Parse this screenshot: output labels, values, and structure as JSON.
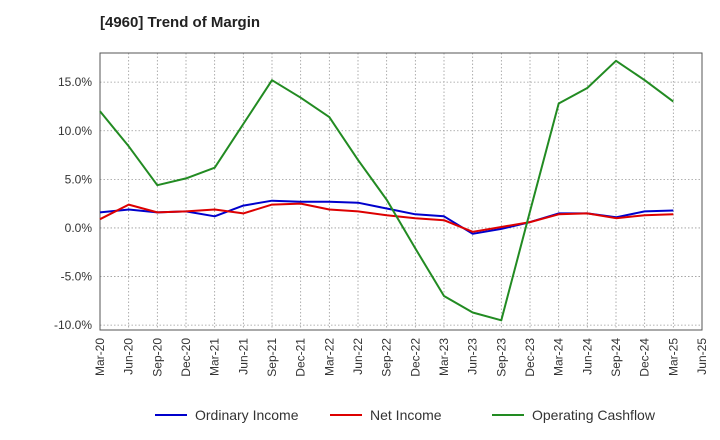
{
  "chart_data": {
    "type": "line",
    "title": "[4960]  Trend of Margin",
    "x": [
      "Mar-20",
      "Jun-20",
      "Sep-20",
      "Dec-20",
      "Mar-21",
      "Jun-21",
      "Sep-21",
      "Dec-21",
      "Mar-22",
      "Jun-22",
      "Sep-22",
      "Dec-22",
      "Mar-23",
      "Jun-23",
      "Sep-23",
      "Dec-23",
      "Mar-24",
      "Jun-24",
      "Sep-24",
      "Dec-24",
      "Mar-25",
      "Jun-25"
    ],
    "y_ticks": [
      "15.0%",
      "10.0%",
      "5.0%",
      "0.0%",
      "-5.0%",
      "-10.0%"
    ],
    "y_tick_values": [
      15,
      10,
      5,
      0,
      -5,
      -10
    ],
    "ylim": [
      -10.5,
      18
    ],
    "grid": true,
    "legend_position": "bottom",
    "series": [
      {
        "name": "Ordinary Income",
        "color": "#0000cc",
        "values": [
          1.6,
          1.9,
          1.6,
          1.7,
          1.2,
          2.3,
          2.8,
          2.7,
          2.7,
          2.6,
          2.0,
          1.4,
          1.2,
          -0.6,
          -0.1,
          0.6,
          1.5,
          1.5,
          1.1,
          1.7,
          1.8,
          null
        ]
      },
      {
        "name": "Net Income",
        "color": "#dd0000",
        "values": [
          0.9,
          2.4,
          1.6,
          1.7,
          1.9,
          1.5,
          2.4,
          2.5,
          1.9,
          1.7,
          1.3,
          1.0,
          0.8,
          -0.4,
          0.1,
          0.6,
          1.4,
          1.5,
          1.0,
          1.3,
          1.4,
          null
        ]
      },
      {
        "name": "Operating Cashflow",
        "color": "#228b22",
        "values": [
          12.0,
          8.4,
          4.4,
          5.1,
          6.2,
          10.7,
          15.2,
          13.4,
          11.4,
          7.0,
          2.9,
          -2.1,
          -7.0,
          -8.7,
          -9.5,
          1.7,
          12.8,
          14.4,
          17.2,
          15.2,
          13.0,
          null
        ]
      }
    ]
  }
}
